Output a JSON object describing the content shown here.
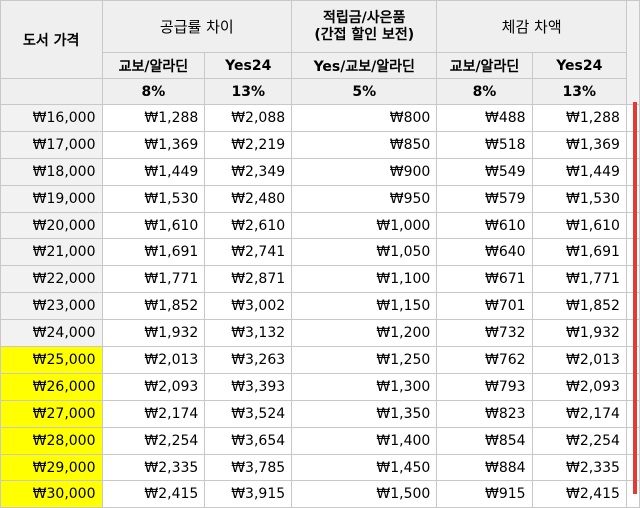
{
  "headers": {
    "book_price": "도서 가격",
    "supply_diff": "공급률 차이",
    "points_line1": "적립금/사은품",
    "points_line2": "(간접 할인 보전)",
    "perceived_diff": "체감 차액",
    "kyobo_aladin": "교보/알라딘",
    "yes24": "Yes24",
    "yes_kyobo_aladin": "Yes/교보/알라딘",
    "pct_supply_kyobo": "8%",
    "pct_supply_yes": "13%",
    "pct_points": "5%",
    "pct_perc_kyobo": "8%",
    "pct_perc_yes": "13%"
  },
  "rows": [
    {
      "price": "₩16,000",
      "s_kyobo": "₩1,288",
      "s_yes": "₩2,088",
      "points": "₩800",
      "p_kyobo": "₩488",
      "p_yes": "₩1,288",
      "highlight": false
    },
    {
      "price": "₩17,000",
      "s_kyobo": "₩1,369",
      "s_yes": "₩2,219",
      "points": "₩850",
      "p_kyobo": "₩518",
      "p_yes": "₩1,369",
      "highlight": false
    },
    {
      "price": "₩18,000",
      "s_kyobo": "₩1,449",
      "s_yes": "₩2,349",
      "points": "₩900",
      "p_kyobo": "₩549",
      "p_yes": "₩1,449",
      "highlight": false
    },
    {
      "price": "₩19,000",
      "s_kyobo": "₩1,530",
      "s_yes": "₩2,480",
      "points": "₩950",
      "p_kyobo": "₩579",
      "p_yes": "₩1,530",
      "highlight": false
    },
    {
      "price": "₩20,000",
      "s_kyobo": "₩1,610",
      "s_yes": "₩2,610",
      "points": "₩1,000",
      "p_kyobo": "₩610",
      "p_yes": "₩1,610",
      "highlight": false
    },
    {
      "price": "₩21,000",
      "s_kyobo": "₩1,691",
      "s_yes": "₩2,741",
      "points": "₩1,050",
      "p_kyobo": "₩640",
      "p_yes": "₩1,691",
      "highlight": false
    },
    {
      "price": "₩22,000",
      "s_kyobo": "₩1,771",
      "s_yes": "₩2,871",
      "points": "₩1,100",
      "p_kyobo": "₩671",
      "p_yes": "₩1,771",
      "highlight": false
    },
    {
      "price": "₩23,000",
      "s_kyobo": "₩1,852",
      "s_yes": "₩3,002",
      "points": "₩1,150",
      "p_kyobo": "₩701",
      "p_yes": "₩1,852",
      "highlight": false
    },
    {
      "price": "₩24,000",
      "s_kyobo": "₩1,932",
      "s_yes": "₩3,132",
      "points": "₩1,200",
      "p_kyobo": "₩732",
      "p_yes": "₩1,932",
      "highlight": false
    },
    {
      "price": "₩25,000",
      "s_kyobo": "₩2,013",
      "s_yes": "₩3,263",
      "points": "₩1,250",
      "p_kyobo": "₩762",
      "p_yes": "₩2,013",
      "highlight": true
    },
    {
      "price": "₩26,000",
      "s_kyobo": "₩2,093",
      "s_yes": "₩3,393",
      "points": "₩1,300",
      "p_kyobo": "₩793",
      "p_yes": "₩2,093",
      "highlight": true
    },
    {
      "price": "₩27,000",
      "s_kyobo": "₩2,174",
      "s_yes": "₩3,524",
      "points": "₩1,350",
      "p_kyobo": "₩823",
      "p_yes": "₩2,174",
      "highlight": true
    },
    {
      "price": "₩28,000",
      "s_kyobo": "₩2,254",
      "s_yes": "₩3,654",
      "points": "₩1,400",
      "p_kyobo": "₩854",
      "p_yes": "₩2,254",
      "highlight": true
    },
    {
      "price": "₩29,000",
      "s_kyobo": "₩2,335",
      "s_yes": "₩3,785",
      "points": "₩1,450",
      "p_kyobo": "₩884",
      "p_yes": "₩2,335",
      "highlight": true
    },
    {
      "price": "₩30,000",
      "s_kyobo": "₩2,415",
      "s_yes": "₩3,915",
      "points": "₩1,500",
      "p_kyobo": "₩915",
      "p_yes": "₩2,415",
      "highlight": true
    }
  ],
  "colors": {
    "highlight": "#ffff00",
    "header_bg": "#efefef",
    "red_bar": "#e53935"
  }
}
